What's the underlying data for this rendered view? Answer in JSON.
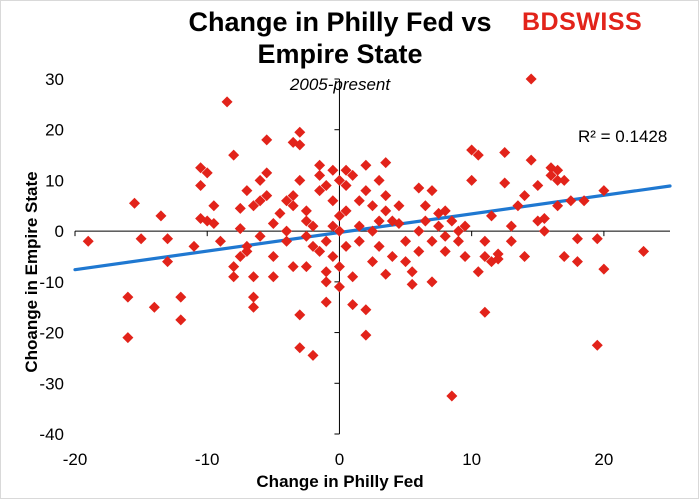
{
  "chart_data": {
    "type": "scatter",
    "title": "Change in Philly Fed vs Empire State",
    "title_lines": [
      "Change in Philly Fed vs",
      "Empire State"
    ],
    "subtitle": "2005-present",
    "xlabel": "Change in Philly Fed",
    "ylabel": "Choange in Empire State",
    "xlim": [
      -20,
      25
    ],
    "ylim": [
      -40,
      30
    ],
    "xticks": [
      -20,
      -10,
      0,
      10,
      20
    ],
    "yticks": [
      30,
      20,
      10,
      0,
      -10,
      -20,
      -30,
      -40
    ],
    "grid": false,
    "marker_color": "#e2231a",
    "trendline": {
      "x": [
        -20,
        25
      ],
      "y": [
        -7.6,
        8.9
      ],
      "color": "#1f78d1",
      "r2_label": "R² = 0.1428"
    },
    "points": [
      {
        "x": -19,
        "y": -2
      },
      {
        "x": -16,
        "y": -13
      },
      {
        "x": -16,
        "y": -21
      },
      {
        "x": -15.5,
        "y": 5.5
      },
      {
        "x": -15,
        "y": -1.5
      },
      {
        "x": -14,
        "y": -15
      },
      {
        "x": -13.5,
        "y": 3
      },
      {
        "x": -13,
        "y": -6
      },
      {
        "x": -13,
        "y": -1.5
      },
      {
        "x": -12,
        "y": -13
      },
      {
        "x": -12,
        "y": -17.5
      },
      {
        "x": -11,
        "y": -3
      },
      {
        "x": -10.5,
        "y": 2.5
      },
      {
        "x": -10.5,
        "y": 12.5
      },
      {
        "x": -10.5,
        "y": 9
      },
      {
        "x": -10,
        "y": 11.5
      },
      {
        "x": -10,
        "y": 2
      },
      {
        "x": -9.5,
        "y": 5
      },
      {
        "x": -9.5,
        "y": 1.5
      },
      {
        "x": -9,
        "y": -2
      },
      {
        "x": -8.5,
        "y": 25.5
      },
      {
        "x": -8,
        "y": 15
      },
      {
        "x": -8,
        "y": -9
      },
      {
        "x": -8,
        "y": -7
      },
      {
        "x": -7.5,
        "y": -5
      },
      {
        "x": -7.5,
        "y": 0.5
      },
      {
        "x": -7.5,
        "y": 4.5
      },
      {
        "x": -7,
        "y": -4
      },
      {
        "x": -7,
        "y": -3
      },
      {
        "x": -7,
        "y": 8
      },
      {
        "x": -6.5,
        "y": -9
      },
      {
        "x": -6.5,
        "y": -13
      },
      {
        "x": -6.5,
        "y": -15
      },
      {
        "x": -6.5,
        "y": 5
      },
      {
        "x": -6,
        "y": 6
      },
      {
        "x": -6,
        "y": 10
      },
      {
        "x": -6,
        "y": -1
      },
      {
        "x": -5.5,
        "y": 18
      },
      {
        "x": -5.5,
        "y": 11.5
      },
      {
        "x": -5.5,
        "y": 7
      },
      {
        "x": -5,
        "y": 1.5
      },
      {
        "x": -5,
        "y": -5
      },
      {
        "x": -5,
        "y": -9
      },
      {
        "x": -4.5,
        "y": 3.5
      },
      {
        "x": -4,
        "y": -2
      },
      {
        "x": -4,
        "y": 0
      },
      {
        "x": -4,
        "y": 6
      },
      {
        "x": -3.5,
        "y": 17.5
      },
      {
        "x": -3.5,
        "y": 7
      },
      {
        "x": -3.5,
        "y": 5
      },
      {
        "x": -3.5,
        "y": -7
      },
      {
        "x": -3,
        "y": 19.5
      },
      {
        "x": -3,
        "y": 17
      },
      {
        "x": -3,
        "y": -16.5
      },
      {
        "x": -3,
        "y": -23
      },
      {
        "x": -3,
        "y": 10
      },
      {
        "x": -2.5,
        "y": 2
      },
      {
        "x": -2.5,
        "y": -1
      },
      {
        "x": -2.5,
        "y": -7
      },
      {
        "x": -2.5,
        "y": 4
      },
      {
        "x": -2,
        "y": 1
      },
      {
        "x": -2,
        "y": -3
      },
      {
        "x": -2,
        "y": -24.5
      },
      {
        "x": -1.5,
        "y": 13
      },
      {
        "x": -1.5,
        "y": 11
      },
      {
        "x": -1.5,
        "y": 8
      },
      {
        "x": -1.5,
        "y": -4
      },
      {
        "x": -1,
        "y": 9
      },
      {
        "x": -1,
        "y": -2
      },
      {
        "x": -1,
        "y": -8
      },
      {
        "x": -1,
        "y": -14
      },
      {
        "x": -1,
        "y": -10
      },
      {
        "x": -0.5,
        "y": 12
      },
      {
        "x": -0.5,
        "y": 6
      },
      {
        "x": -0.5,
        "y": 1
      },
      {
        "x": -0.5,
        "y": -5
      },
      {
        "x": 0,
        "y": 10
      },
      {
        "x": 0,
        "y": 3
      },
      {
        "x": 0,
        "y": 0
      },
      {
        "x": 0,
        "y": -7
      },
      {
        "x": 0,
        "y": -11
      },
      {
        "x": 0.5,
        "y": 12
      },
      {
        "x": 0.5,
        "y": 9
      },
      {
        "x": 0.5,
        "y": 4
      },
      {
        "x": 0.5,
        "y": -3
      },
      {
        "x": 1,
        "y": 11
      },
      {
        "x": 1,
        "y": -9
      },
      {
        "x": 1,
        "y": -14.5
      },
      {
        "x": 1.5,
        "y": 6
      },
      {
        "x": 1.5,
        "y": 1
      },
      {
        "x": 1.5,
        "y": -2
      },
      {
        "x": 2,
        "y": 13
      },
      {
        "x": 2,
        "y": -20.5
      },
      {
        "x": 2,
        "y": -15.5
      },
      {
        "x": 2,
        "y": 8
      },
      {
        "x": 2.5,
        "y": 5
      },
      {
        "x": 2.5,
        "y": 0
      },
      {
        "x": 2.5,
        "y": -6
      },
      {
        "x": 3,
        "y": 10
      },
      {
        "x": 3,
        "y": 2
      },
      {
        "x": 3,
        "y": -3
      },
      {
        "x": 3.5,
        "y": 13.5
      },
      {
        "x": 3.5,
        "y": 7
      },
      {
        "x": 3.5,
        "y": 4
      },
      {
        "x": 3.5,
        "y": -8.5
      },
      {
        "x": 4,
        "y": 2
      },
      {
        "x": 4,
        "y": -5
      },
      {
        "x": 4.5,
        "y": 5
      },
      {
        "x": 4.5,
        "y": 1.5
      },
      {
        "x": 5,
        "y": -2
      },
      {
        "x": 5,
        "y": -6
      },
      {
        "x": 5.5,
        "y": -8
      },
      {
        "x": 5.5,
        "y": -10.5
      },
      {
        "x": 6,
        "y": 8.5
      },
      {
        "x": 6,
        "y": 0
      },
      {
        "x": 6,
        "y": -4
      },
      {
        "x": 6.5,
        "y": 5
      },
      {
        "x": 6.5,
        "y": 2
      },
      {
        "x": 7,
        "y": 8
      },
      {
        "x": 7,
        "y": -2
      },
      {
        "x": 7,
        "y": -10
      },
      {
        "x": 7.5,
        "y": 3.5
      },
      {
        "x": 7.5,
        "y": 1
      },
      {
        "x": 8,
        "y": 4
      },
      {
        "x": 8,
        "y": -1
      },
      {
        "x": 8,
        "y": -4
      },
      {
        "x": 8.5,
        "y": -32.5
      },
      {
        "x": 8.5,
        "y": 2
      },
      {
        "x": 9,
        "y": -2
      },
      {
        "x": 9,
        "y": 0
      },
      {
        "x": 9.5,
        "y": 1
      },
      {
        "x": 9.5,
        "y": -5
      },
      {
        "x": 10,
        "y": 10
      },
      {
        "x": 10,
        "y": 16
      },
      {
        "x": 10.5,
        "y": 15
      },
      {
        "x": 10.5,
        "y": -8
      },
      {
        "x": 11,
        "y": -2
      },
      {
        "x": 11,
        "y": -5
      },
      {
        "x": 11,
        "y": -16
      },
      {
        "x": 11.5,
        "y": 3
      },
      {
        "x": 11.5,
        "y": -6
      },
      {
        "x": 12,
        "y": -4.5
      },
      {
        "x": 12,
        "y": -5.5
      },
      {
        "x": 12.5,
        "y": 15.5
      },
      {
        "x": 12.5,
        "y": 9.5
      },
      {
        "x": 13,
        "y": -2
      },
      {
        "x": 13,
        "y": 1
      },
      {
        "x": 13.5,
        "y": 5
      },
      {
        "x": 14,
        "y": -5
      },
      {
        "x": 14,
        "y": 7
      },
      {
        "x": 14.5,
        "y": 30
      },
      {
        "x": 14.5,
        "y": 14
      },
      {
        "x": 15,
        "y": 9
      },
      {
        "x": 15,
        "y": 2
      },
      {
        "x": 15.5,
        "y": 0
      },
      {
        "x": 15.5,
        "y": 2.5
      },
      {
        "x": 16,
        "y": 12.5
      },
      {
        "x": 16,
        "y": 11
      },
      {
        "x": 16.5,
        "y": 12
      },
      {
        "x": 16.5,
        "y": 5
      },
      {
        "x": 16.5,
        "y": 10
      },
      {
        "x": 17,
        "y": -5
      },
      {
        "x": 17,
        "y": 10
      },
      {
        "x": 17.5,
        "y": 6
      },
      {
        "x": 18,
        "y": -1.5
      },
      {
        "x": 18,
        "y": -6
      },
      {
        "x": 18.5,
        "y": 6
      },
      {
        "x": 19.5,
        "y": -22.5
      },
      {
        "x": 19.5,
        "y": -1.5
      },
      {
        "x": 20,
        "y": 8
      },
      {
        "x": 20,
        "y": -7.5
      },
      {
        "x": 23,
        "y": -4
      }
    ]
  },
  "brand": {
    "logo_bd": "BD",
    "logo_rest": "SWISS",
    "color": "#e2231a"
  }
}
